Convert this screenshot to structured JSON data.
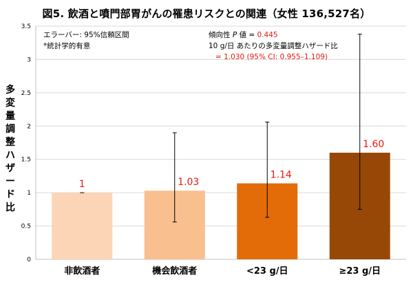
{
  "title": "図5. 飲酒と噴門部胃がんの罹患リスクとの関連（女性 136,527名）",
  "chart_data": {
    "type": "bar",
    "title": "図5. 飲酒と噴門部胃がんの罹患リスクとの関連（女性 136,527名）",
    "ylabel": "多変量調整ハザード比",
    "xlabel": "",
    "ylim": [
      0,
      3.5
    ],
    "yticks": [
      "0",
      "0.5",
      "1",
      "1.5",
      "2",
      "2.5",
      "3",
      "3.5"
    ],
    "categories": [
      "非飲酒者",
      "機会飲酒者",
      "<23 g/日",
      "≥23 g/日"
    ],
    "values": [
      1,
      1.03,
      1.14,
      1.6
    ],
    "value_labels": [
      "1",
      "1.03",
      "1.14",
      "1.60"
    ],
    "error_low": [
      1,
      0.56,
      0.63,
      0.75
    ],
    "error_high": [
      1,
      1.9,
      2.06,
      3.38
    ],
    "bar_colors": [
      "#fbd5b5",
      "#f9bf8f",
      "#e36c09",
      "#974806"
    ],
    "label_color": "#e8190f",
    "grid": true
  },
  "notes": {
    "errorbar": "エラーバー: 95%信頼区間",
    "significance": "*統計学的有意",
    "trend_prefix": "傾向性 ",
    "trend_p": "P",
    "trend_middle": " 値 = ",
    "trend_value": "0.445",
    "per10": "10 g/日 あたりの多変量調整ハザード比",
    "per10_value": "= 1.030 (95% CI: 0.955–1.109)"
  }
}
